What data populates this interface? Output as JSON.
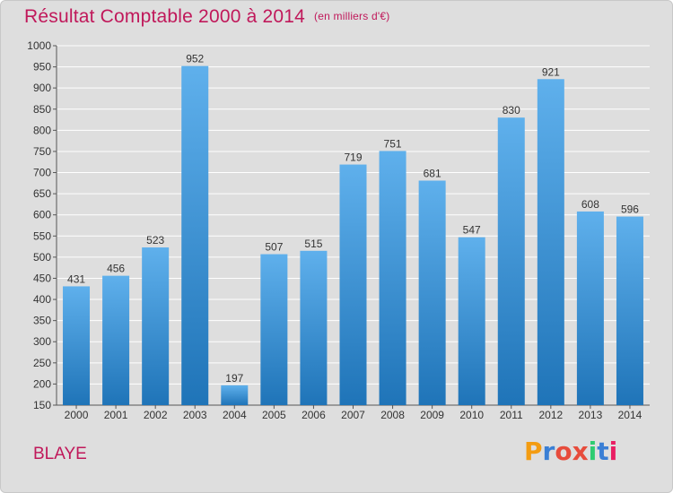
{
  "title": "Résultat Comptable 2000 à 2014",
  "subtitle": "(en milliers d'€)",
  "location": "BLAYE",
  "brand": {
    "letters": [
      "P",
      "r",
      "o",
      "x",
      "i",
      "t",
      "i"
    ],
    "colors": [
      "#f39c12",
      "#3a7fd5",
      "#e74c3c",
      "#e74c3c",
      "#2ecc71",
      "#3a7fd5",
      "#e91e63"
    ]
  },
  "colors": {
    "title": "#c0185a",
    "bar_top": "#5fb0ec",
    "bar_bottom": "#1f74b8",
    "background": "#dedede"
  },
  "chart_data": {
    "type": "bar",
    "title": "Résultat Comptable 2000 à 2014",
    "subtitle": "(en milliers d'€)",
    "xlabel": "",
    "ylabel": "",
    "categories": [
      "2000",
      "2001",
      "2002",
      "2003",
      "2004",
      "2005",
      "2006",
      "2007",
      "2008",
      "2009",
      "2010",
      "2011",
      "2012",
      "2013",
      "2014"
    ],
    "values": [
      431,
      456,
      523,
      952,
      197,
      507,
      515,
      719,
      751,
      681,
      547,
      830,
      921,
      608,
      596
    ],
    "ylim": [
      150,
      1000
    ],
    "yticks": [
      150,
      200,
      250,
      300,
      350,
      400,
      450,
      500,
      550,
      600,
      650,
      700,
      750,
      800,
      850,
      900,
      950,
      1000
    ],
    "grid": true,
    "legend": "none"
  }
}
